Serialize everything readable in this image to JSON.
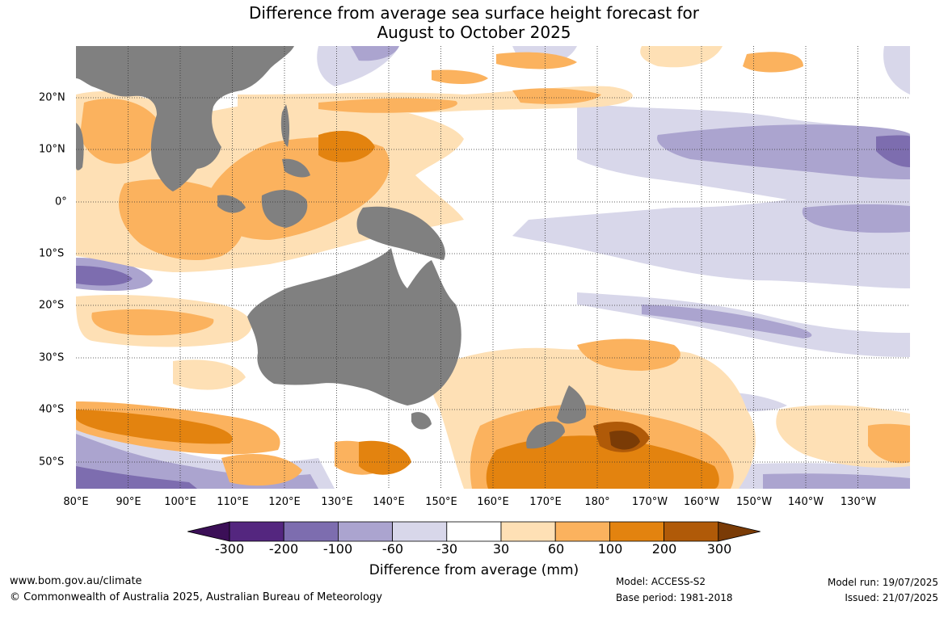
{
  "title_line1": "Difference from average sea surface height forecast for",
  "title_line2": "August to October 2025",
  "longitude_labels": [
    "80°E",
    "90°E",
    "100°E",
    "110°E",
    "120°E",
    "130°E",
    "140°E",
    "150°E",
    "160°E",
    "170°E",
    "180°",
    "170°W",
    "160°W",
    "150°W",
    "140°W",
    "130°W"
  ],
  "latitude_labels": [
    "20°N",
    "10°N",
    "0°",
    "10°S",
    "20°S",
    "30°S",
    "40°S",
    "50°S"
  ],
  "colorbar": {
    "title": "Difference from average (mm)",
    "ticks": [
      "-300",
      "-200",
      "-100",
      "-60",
      "-30",
      "30",
      "60",
      "100",
      "200",
      "300"
    ],
    "colors": [
      "#3b0f57",
      "#54267f",
      "#7d6daf",
      "#aba4cf",
      "#d8d7ea",
      "#ffffff",
      "#fee0b5",
      "#fbb25e",
      "#e3830f",
      "#b05a08",
      "#7a3b06"
    ]
  },
  "colors": {
    "land": "#808080",
    "grid": "#333333"
  },
  "footer": {
    "url": "www.bom.gov.au/climate",
    "copyright": "© Commonwealth of Australia 2025, Australian Bureau of Meteorology",
    "model": "Model: ACCESS-S2",
    "base_period": "Base period: 1981-2018",
    "model_run": "Model run: 19/07/2025",
    "issued": "Issued: 21/07/2025"
  }
}
